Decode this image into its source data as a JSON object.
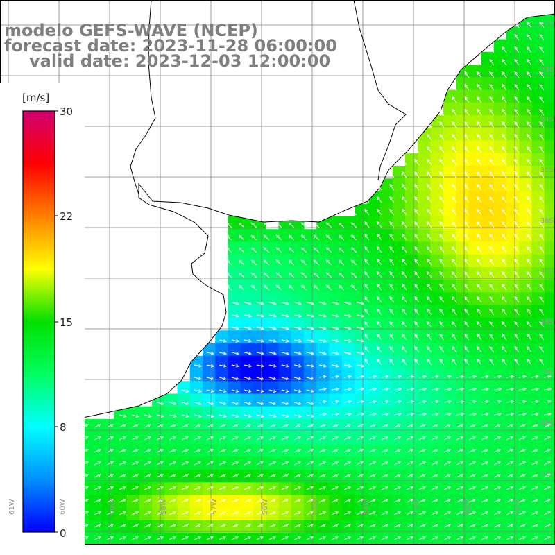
{
  "title": {
    "model": "modelo GEFS-WAVE (NCEP)",
    "forecast": "forecast date: 2023-11-28 06:00:00",
    "valid": "valid date: 2023-12-03 12:00:00"
  },
  "colorbar": {
    "unit": "[m/s]",
    "ticks": [
      "30",
      "22",
      "15",
      "8",
      "0"
    ],
    "colors": [
      "#0000ff",
      "#0090ff",
      "#00ffff",
      "#00ff60",
      "#00e000",
      "#ffff00",
      "#ff8000",
      "#ff0000",
      "#d00070"
    ]
  },
  "lat_labels": [
    "32S",
    "33S",
    "34S",
    "35S",
    "36S",
    "37S",
    "38S",
    "39S",
    "40S",
    "41S"
  ],
  "lon_labels": [
    "61W",
    "60W",
    "59W",
    "58W",
    "57W",
    "56W",
    "55W",
    "54W",
    "53W",
    "52W",
    "51W"
  ],
  "map": {
    "land_color": "#ffffff",
    "grid_color": "#7f7f7f",
    "arrow_color": "#ffffff"
  }
}
